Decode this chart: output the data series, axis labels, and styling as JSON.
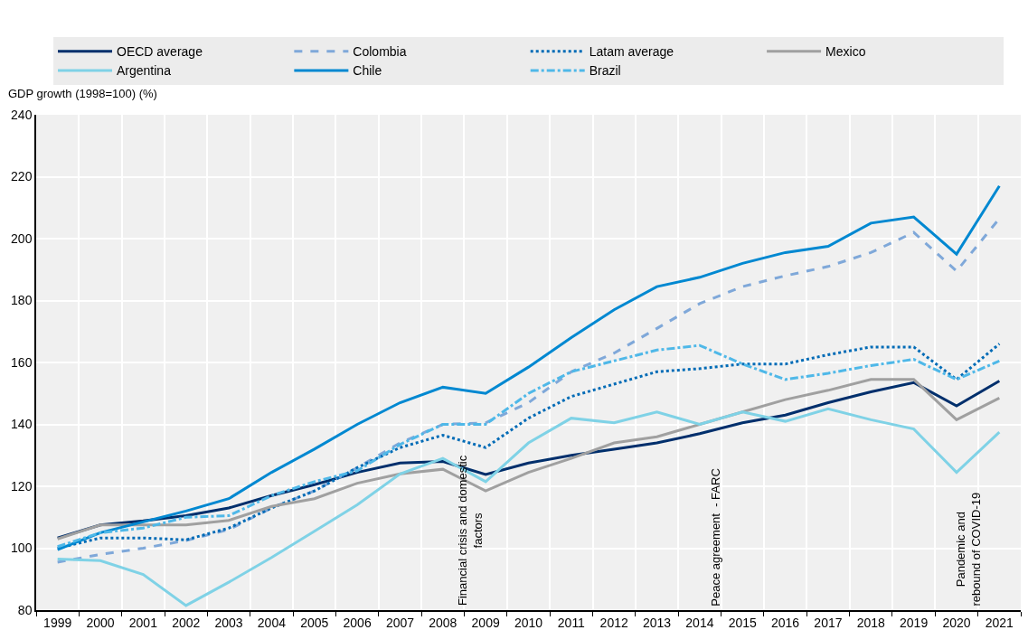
{
  "chart_data": {
    "type": "line",
    "ylabel": "GDP growth (1998=100) (%)",
    "categories": [
      "1999",
      "2000",
      "2001",
      "2002",
      "2003",
      "2004",
      "2005",
      "2006",
      "2007",
      "2008",
      "2009",
      "2010",
      "2011",
      "2012",
      "2013",
      "2014",
      "2015",
      "2016",
      "2017",
      "2018",
      "2019",
      "2020",
      "2021"
    ],
    "series": [
      {
        "name": "OECD average",
        "color": "#002f6c",
        "line_style": "solid",
        "values": [
          103.3,
          107.5,
          108.8,
          110.5,
          113,
          117,
          120.5,
          124.5,
          127.5,
          128,
          123.8,
          127.5,
          130,
          132,
          134,
          137,
          140.5,
          143,
          147,
          150.5,
          153.5,
          146,
          154
        ]
      },
      {
        "name": "Colombia",
        "color": "#7fa8d9",
        "line_style": "dashed",
        "values": [
          95.5,
          98,
          100,
          102.5,
          106,
          113,
          118.5,
          126,
          134,
          140,
          140.5,
          147,
          157,
          163,
          171,
          179,
          184.5,
          188,
          191,
          195.5,
          202,
          189.5,
          206.5
        ]
      },
      {
        "name": "Latam average",
        "color": "#006bb6",
        "line_style": "dotted",
        "values": [
          100,
          103.3,
          103.3,
          102.7,
          106.5,
          113,
          118.5,
          126,
          132.5,
          136.5,
          132.5,
          142,
          149,
          153,
          157,
          158,
          159.5,
          159.5,
          162.5,
          165,
          165,
          154.5,
          166
        ]
      },
      {
        "name": "Mexico",
        "color": "#a0a0a0",
        "line_style": "solid",
        "values": [
          103,
          107.5,
          107.5,
          107.5,
          109,
          113.5,
          116,
          121,
          124,
          125.5,
          118.5,
          124.5,
          129,
          134,
          136,
          140,
          144,
          148,
          151,
          154.5,
          154.5,
          141.5,
          148.5
        ]
      },
      {
        "name": "Argentina",
        "color": "#7fd2e6",
        "line_style": "solid",
        "values": [
          96.5,
          96,
          91.5,
          81.5,
          89,
          97,
          105.5,
          114,
          124,
          129,
          121.5,
          134,
          142,
          140.5,
          144,
          140,
          144,
          141,
          145,
          141.5,
          138.5,
          124.5,
          137.5
        ]
      },
      {
        "name": "Chile",
        "color": "#0088d1",
        "line_style": "solid",
        "values": [
          99.5,
          105,
          108.5,
          112,
          116,
          124.5,
          132,
          140,
          147,
          152,
          150,
          158.5,
          168,
          177,
          184.5,
          187.5,
          192,
          195.5,
          197.5,
          205,
          207,
          195,
          217
        ]
      },
      {
        "name": "Brazil",
        "color": "#4fb8e8",
        "line_style": "dashdot",
        "values": [
          100.5,
          105,
          106.5,
          110,
          110.5,
          117,
          121.5,
          125,
          133.5,
          140,
          140,
          150,
          157,
          160.5,
          164,
          165.5,
          159.5,
          154.5,
          156.5,
          159,
          161,
          154.5,
          160.5
        ]
      }
    ],
    "ylim": [
      80,
      240
    ],
    "yticks": [
      80,
      100,
      120,
      140,
      160,
      180,
      200,
      220,
      240
    ],
    "grid": true,
    "legend": "top",
    "marker": "none",
    "annotations": [
      "Financial crisis and domestic\nfactors",
      "Peace agreement  - FARC",
      "Pandemic and\nrebound of COVID-19"
    ]
  }
}
